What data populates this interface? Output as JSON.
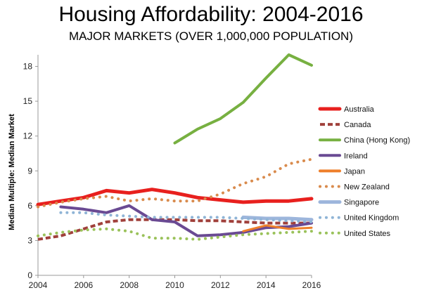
{
  "chart_data": {
    "type": "line",
    "title": "Housing Affordability: 2004-2016",
    "subtitle": "MAJOR MARKETS (OVER 1,000,000 POPULATION)",
    "xlabel": "",
    "ylabel": "Median Multiple: Median Market",
    "xlim": [
      2004,
      2016
    ],
    "ylim": [
      0,
      19
    ],
    "xticks": [
      2004,
      2006,
      2008,
      2010,
      2012,
      2014,
      2016
    ],
    "yticks": [
      0,
      3,
      6,
      9,
      12,
      15,
      18
    ],
    "grid": false,
    "legend_position": "right",
    "series": [
      {
        "name": "Australia",
        "color": "#e8201e",
        "style": "solid",
        "width": 5,
        "x": [
          2004,
          2005,
          2006,
          2007,
          2008,
          2009,
          2010,
          2011,
          2012,
          2013,
          2014,
          2015,
          2016
        ],
        "values": [
          6.1,
          6.4,
          6.7,
          7.3,
          7.1,
          7.4,
          7.1,
          6.7,
          6.5,
          6.3,
          6.4,
          6.4,
          6.6
        ]
      },
      {
        "name": "Canada",
        "color": "#a0403b",
        "style": "dashed",
        "width": 4,
        "x": [
          2004,
          2005,
          2006,
          2007,
          2008,
          2009,
          2010,
          2011,
          2012,
          2013,
          2014,
          2015,
          2016
        ],
        "values": [
          3.1,
          3.4,
          4.0,
          4.6,
          4.8,
          4.8,
          4.8,
          4.7,
          4.7,
          4.6,
          4.5,
          4.5,
          4.5
        ]
      },
      {
        "name": "China (Hong Kong)",
        "color": "#77b041",
        "style": "solid",
        "width": 4,
        "x": [
          2010,
          2011,
          2012,
          2013,
          2014,
          2015,
          2016
        ],
        "values": [
          11.4,
          12.6,
          13.5,
          14.9,
          17.0,
          19.0,
          18.1
        ]
      },
      {
        "name": "Ireland",
        "color": "#6a4a93",
        "style": "solid",
        "width": 4,
        "x": [
          2005,
          2006,
          2007,
          2008,
          2009,
          2010,
          2011,
          2012,
          2013,
          2014,
          2015,
          2016
        ],
        "values": [
          5.9,
          5.7,
          5.4,
          6.0,
          4.8,
          4.6,
          3.4,
          3.5,
          3.7,
          4.1,
          4.2,
          4.5
        ]
      },
      {
        "name": "Japan",
        "color": "#ee7f2a",
        "style": "solid",
        "width": 3,
        "x": [
          2013,
          2014,
          2015,
          2016
        ],
        "values": [
          3.8,
          4.3,
          4.0,
          4.1
        ]
      },
      {
        "name": "New Zealand",
        "color": "#d98b4d",
        "style": "dotted",
        "width": 4,
        "x": [
          2004,
          2005,
          2006,
          2007,
          2008,
          2009,
          2010,
          2011,
          2012,
          2013,
          2014,
          2015,
          2016
        ],
        "values": [
          5.9,
          6.3,
          6.6,
          6.8,
          6.4,
          6.6,
          6.4,
          6.4,
          7.0,
          7.9,
          8.5,
          9.6,
          10.0
        ]
      },
      {
        "name": "Singapore",
        "color": "#9db6dc",
        "style": "solid",
        "width": 5,
        "x": [
          2013,
          2014,
          2015,
          2016
        ],
        "values": [
          5.0,
          4.9,
          4.9,
          4.8
        ]
      },
      {
        "name": "United Kingdom",
        "color": "#8fb4d6",
        "style": "dotted",
        "width": 4,
        "x": [
          2005,
          2006,
          2007,
          2008,
          2009,
          2010,
          2011,
          2012,
          2013,
          2014,
          2015,
          2016
        ],
        "values": [
          5.4,
          5.4,
          5.2,
          5.1,
          5.0,
          5.0,
          5.0,
          5.0,
          4.9,
          4.8,
          4.7,
          4.6
        ]
      },
      {
        "name": "United States",
        "color": "#9ac25a",
        "style": "dotted",
        "width": 4,
        "x": [
          2004,
          2005,
          2006,
          2007,
          2008,
          2009,
          2010,
          2011,
          2012,
          2013,
          2014,
          2015,
          2016
        ],
        "values": [
          3.4,
          3.7,
          3.9,
          4.0,
          3.8,
          3.2,
          3.2,
          3.1,
          3.3,
          3.5,
          3.6,
          3.7,
          3.8
        ]
      }
    ]
  }
}
